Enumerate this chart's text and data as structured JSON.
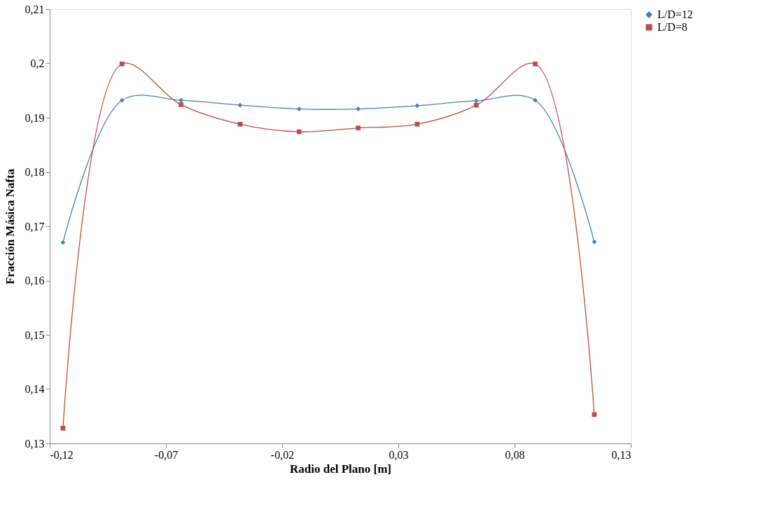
{
  "chart_data": {
    "type": "line",
    "xlabel": "Radio del Plano [m]",
    "ylabel": "Fracción Másica Nafta",
    "x": [
      -0.1143,
      -0.0889,
      -0.0635,
      -0.0381,
      -0.0127,
      0.0127,
      0.0381,
      0.0635,
      0.0889,
      0.1143
    ],
    "series": [
      {
        "name": "L/D=12",
        "color": "#4a7ebb",
        "marker": "diamond",
        "values": [
          0.167,
          0.1932,
          0.1932,
          0.1923,
          0.1916,
          0.1916,
          0.1922,
          0.1931,
          0.1932,
          0.1671
        ]
      },
      {
        "name": "L/D=8",
        "color": "#be4b48",
        "marker": "square",
        "values": [
          0.1328,
          0.1999,
          0.1924,
          0.1888,
          0.1874,
          0.1881,
          0.1888,
          0.1923,
          0.1999,
          0.1353
        ]
      }
    ],
    "xlim": [
      -0.12,
      0.13
    ],
    "xticks": [
      {
        "value": -0.12,
        "label": "-0,12"
      },
      {
        "value": -0.07,
        "label": "-0,07"
      },
      {
        "value": -0.02,
        "label": "-0,02"
      },
      {
        "value": 0.03,
        "label": "0,03"
      },
      {
        "value": 0.08,
        "label": "0,08"
      },
      {
        "value": 0.13,
        "label": "0,13"
      }
    ],
    "ylim": [
      0.13,
      0.21
    ],
    "yticks": [
      {
        "value": 0.13,
        "label": "0,13"
      },
      {
        "value": 0.14,
        "label": "0,14"
      },
      {
        "value": 0.15,
        "label": "0,15"
      },
      {
        "value": 0.16,
        "label": "0,16"
      },
      {
        "value": 0.17,
        "label": "0,17"
      },
      {
        "value": 0.18,
        "label": "0,18"
      },
      {
        "value": 0.19,
        "label": "0,19"
      },
      {
        "value": 0.2,
        "label": "0,2"
      },
      {
        "value": 0.21,
        "label": "0,21"
      }
    ],
    "grid": false,
    "legend": "right",
    "line_style": "solid"
  }
}
